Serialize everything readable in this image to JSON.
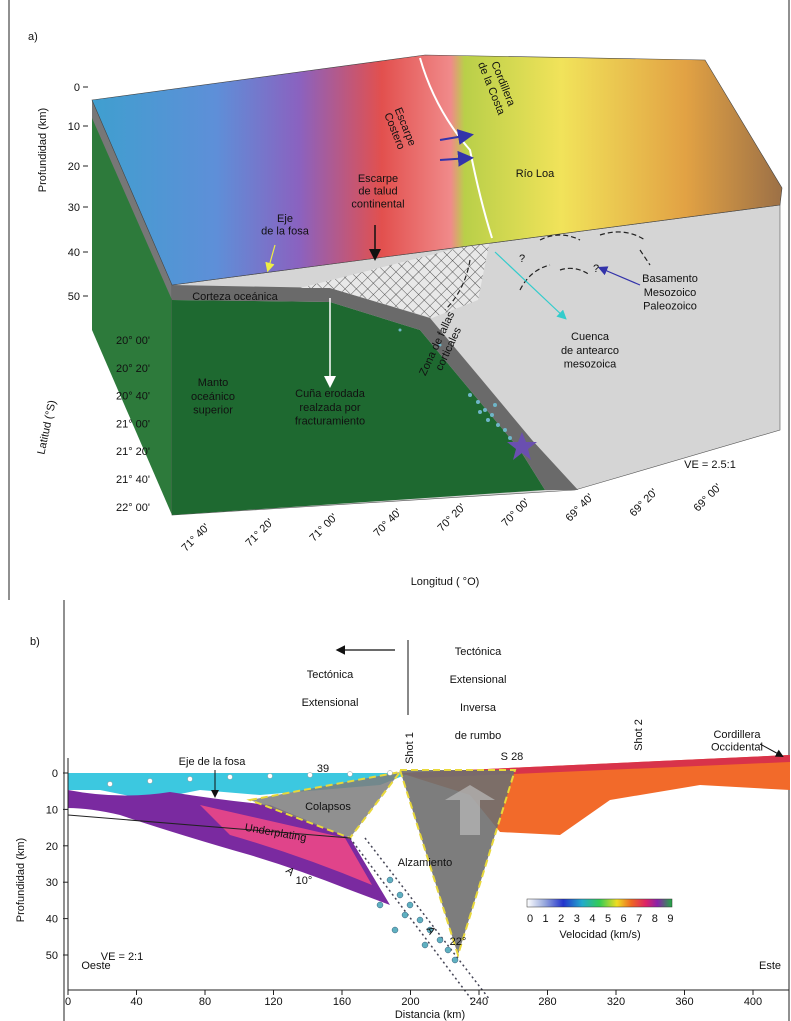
{
  "panel_a": {
    "label": "a)",
    "depth_axis": {
      "title": "Profundidad (km)",
      "ticks": [
        "0",
        "10",
        "20",
        "30",
        "40",
        "50"
      ]
    },
    "latitude_axis": {
      "title": "Latitud (°S)",
      "ticks": [
        "20° 00'",
        "20° 20'",
        "20° 40'",
        "21° 00'",
        "21° 20'",
        "21° 40'",
        "22° 00'"
      ]
    },
    "longitude_axis": {
      "title": "Longitud ( °O)",
      "ticks": [
        "71° 40'",
        "71° 20'",
        "71° 00'",
        "70° 40'",
        "70° 20'",
        "70° 00'",
        "69° 40'",
        "69° 20'",
        "69° 00'"
      ]
    },
    "labels": {
      "cordillera": [
        "Cordillera",
        "de la Costa"
      ],
      "escarpe_costero": [
        "Escarpe",
        "Costero"
      ],
      "rio_loa": "Río Loa",
      "escarpe_talud": [
        "Escarpe",
        "de talud",
        "continental"
      ],
      "eje_fosa": [
        "Eje",
        "de la fosa"
      ],
      "corteza": "Corteza oceánica",
      "zona_fallas": [
        "Zona de fallas",
        "corticales"
      ],
      "cuenca": [
        "Cuenca",
        "de antearco",
        "mesozoica"
      ],
      "basamento": [
        "Basamento",
        "Mesozoico",
        "Paleozoico"
      ],
      "manto": [
        "Manto",
        "oceánico",
        "superior"
      ],
      "cuna": [
        "Cuña erodada",
        "realzada por",
        "fracturamiento"
      ],
      "question_1": "?",
      "question_2": "?",
      "ve": "VE = 2.5:1"
    }
  },
  "panel_b": {
    "label": "b)",
    "tectonics_left": [
      "Tectónica",
      "Extensional"
    ],
    "tectonics_right": [
      "Tectónica",
      "Extensional",
      "Inversa",
      "de rumbo"
    ],
    "depth_axis": {
      "title": "Profundidad (km)",
      "ticks": [
        "0",
        "10",
        "20",
        "30",
        "40",
        "50"
      ]
    },
    "distance_axis": {
      "title": "Distancia (km)",
      "ticks": [
        "0",
        "40",
        "80",
        "120",
        "160",
        "200",
        "240",
        "280",
        "320",
        "360",
        "400"
      ]
    },
    "colorbar": {
      "title": "Velocidad (km/s)",
      "ticks": [
        "0",
        "1",
        "2",
        "3",
        "4",
        "5",
        "6",
        "7",
        "8",
        "9"
      ]
    },
    "labels": {
      "eje_fosa": "Eje de la fosa",
      "station": "39",
      "shot_1": "Shot 1",
      "s28": "S 28",
      "shot_2": "Shot 2",
      "cordillera": [
        "Cordillera",
        "Occidental"
      ],
      "colapsos": "Colapsos",
      "underplating": "Underplating",
      "alzamiento": "Alzamiento",
      "angle_1": "10°",
      "angle_2": "22°",
      "a_1": "A",
      "a_2": "A",
      "ve": "VE = 2:1",
      "oeste": "Oeste",
      "este": "Este"
    }
  }
}
